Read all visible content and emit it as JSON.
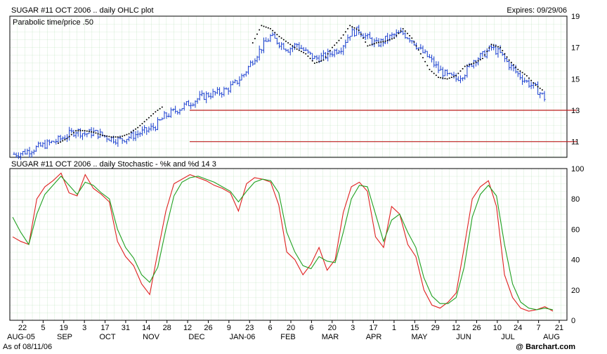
{
  "header": {
    "price_title": "SUGAR #11 OCT 2006 .. daily OHLC plot",
    "expires": "Expires: 09/29/06",
    "indicator_label": "Parabolic time/price .50",
    "stoch_title": "SUGAR #11 OCT 2006 .. daily Stochastic - %k and %d   14   3",
    "as_of": "As of 08/11/06",
    "brand": "@ Barchart.com"
  },
  "colors": {
    "grid": "#b8e0b8",
    "price_bar": "#1a3fd0",
    "sar_dots": "#000000",
    "hline": "#c02020",
    "k_line": "#e02020",
    "d_line": "#20a020"
  },
  "chart_data": [
    {
      "type": "ohlc",
      "title": "SUGAR #11 OCT 2006 .. daily OHLC plot",
      "ylim": [
        10,
        19
      ],
      "y_ticks": [
        19,
        17,
        15,
        13,
        11
      ],
      "horizontal_lines": [
        13,
        11
      ],
      "x_ticks": [
        "22",
        "5",
        "19",
        "3",
        "17",
        "31",
        "14",
        "28",
        "12",
        "26",
        "9",
        "23",
        "6",
        "20",
        "6",
        "20",
        "3",
        "17",
        "1",
        "15",
        "29",
        "12",
        "26",
        "10",
        "24",
        "7",
        "21"
      ],
      "months": [
        "AUG-05",
        "SEP",
        "OCT",
        "NOV",
        "DEC",
        "JAN-06",
        "FEB",
        "MAR",
        "APR",
        "MAY",
        "JUN",
        "JUL",
        "AUG"
      ],
      "close_series": [
        10.2,
        10.3,
        10.5,
        10.7,
        10.9,
        11.1,
        11.4,
        11.7,
        11.5,
        11.6,
        11.4,
        11.2,
        11.1,
        11.3,
        11.5,
        11.7,
        12.0,
        12.6,
        12.9,
        13.2,
        13.5,
        13.8,
        14.0,
        14.1,
        14.3,
        14.7,
        15.3,
        16.2,
        17.0,
        17.7,
        17.3,
        16.9,
        17.2,
        16.7,
        16.3,
        16.4,
        16.7,
        17.0,
        17.9,
        18.1,
        17.6,
        17.2,
        17.5,
        17.8,
        17.9,
        17.5,
        16.8,
        16.3,
        15.6,
        15.2,
        15.0,
        15.4,
        16.2,
        16.5,
        17.0,
        16.6,
        15.9,
        15.3,
        14.8,
        14.4,
        13.8
      ],
      "sar_series": [
        null,
        null,
        null,
        null,
        null,
        10.9,
        11.2,
        11.7,
        11.7,
        11.6,
        11.4,
        11.3,
        11.3,
        11.5,
        11.9,
        12.4,
        12.9,
        13.3,
        null,
        null,
        null,
        null,
        null,
        null,
        null,
        null,
        null,
        17.3,
        18.4,
        18.2,
        17.7,
        17.3,
        16.9,
        16.6,
        16.0,
        16.2,
        17.0,
        17.6,
        18.4,
        18.1,
        17.1,
        17.3,
        17.4,
        17.6,
        18.2,
        17.6,
        16.6,
        15.6,
        15.1,
        15.0,
        15.2,
        15.8,
        16.0,
        16.3,
        17.2,
        17.0,
        16.2,
        15.6,
        15.2,
        14.6,
        14.2
      ]
    },
    {
      "type": "line",
      "title": "SUGAR #11 OCT 2006 .. daily Stochastic - %k and %d 14 3",
      "ylim": [
        0,
        100
      ],
      "y_ticks": [
        100,
        80,
        60,
        40,
        20,
        0
      ],
      "series": [
        {
          "name": "%k",
          "values": [
            55,
            52,
            50,
            80,
            88,
            92,
            97,
            84,
            82,
            96,
            87,
            83,
            78,
            52,
            42,
            36,
            24,
            17,
            45,
            72,
            90,
            93,
            96,
            94,
            92,
            89,
            87,
            84,
            72,
            90,
            94,
            93,
            91,
            76,
            45,
            40,
            30,
            37,
            48,
            33,
            40,
            71,
            88,
            91,
            85,
            55,
            48,
            75,
            70,
            50,
            42,
            20,
            10,
            8,
            12,
            18,
            48,
            80,
            88,
            92,
            75,
            30,
            15,
            8,
            6,
            7,
            9,
            6
          ]
        },
        {
          "name": "%d",
          "values": [
            68,
            58,
            50,
            70,
            83,
            89,
            95,
            89,
            83,
            91,
            89,
            84,
            80,
            60,
            48,
            41,
            30,
            25,
            35,
            60,
            82,
            91,
            94,
            95,
            93,
            91,
            88,
            85,
            78,
            85,
            91,
            93,
            92,
            84,
            58,
            45,
            36,
            34,
            42,
            39,
            38,
            58,
            80,
            89,
            88,
            70,
            52,
            66,
            70,
            58,
            48,
            28,
            16,
            11,
            11,
            15,
            35,
            68,
            83,
            89,
            82,
            50,
            24,
            12,
            8,
            7,
            8,
            7
          ]
        }
      ]
    }
  ]
}
